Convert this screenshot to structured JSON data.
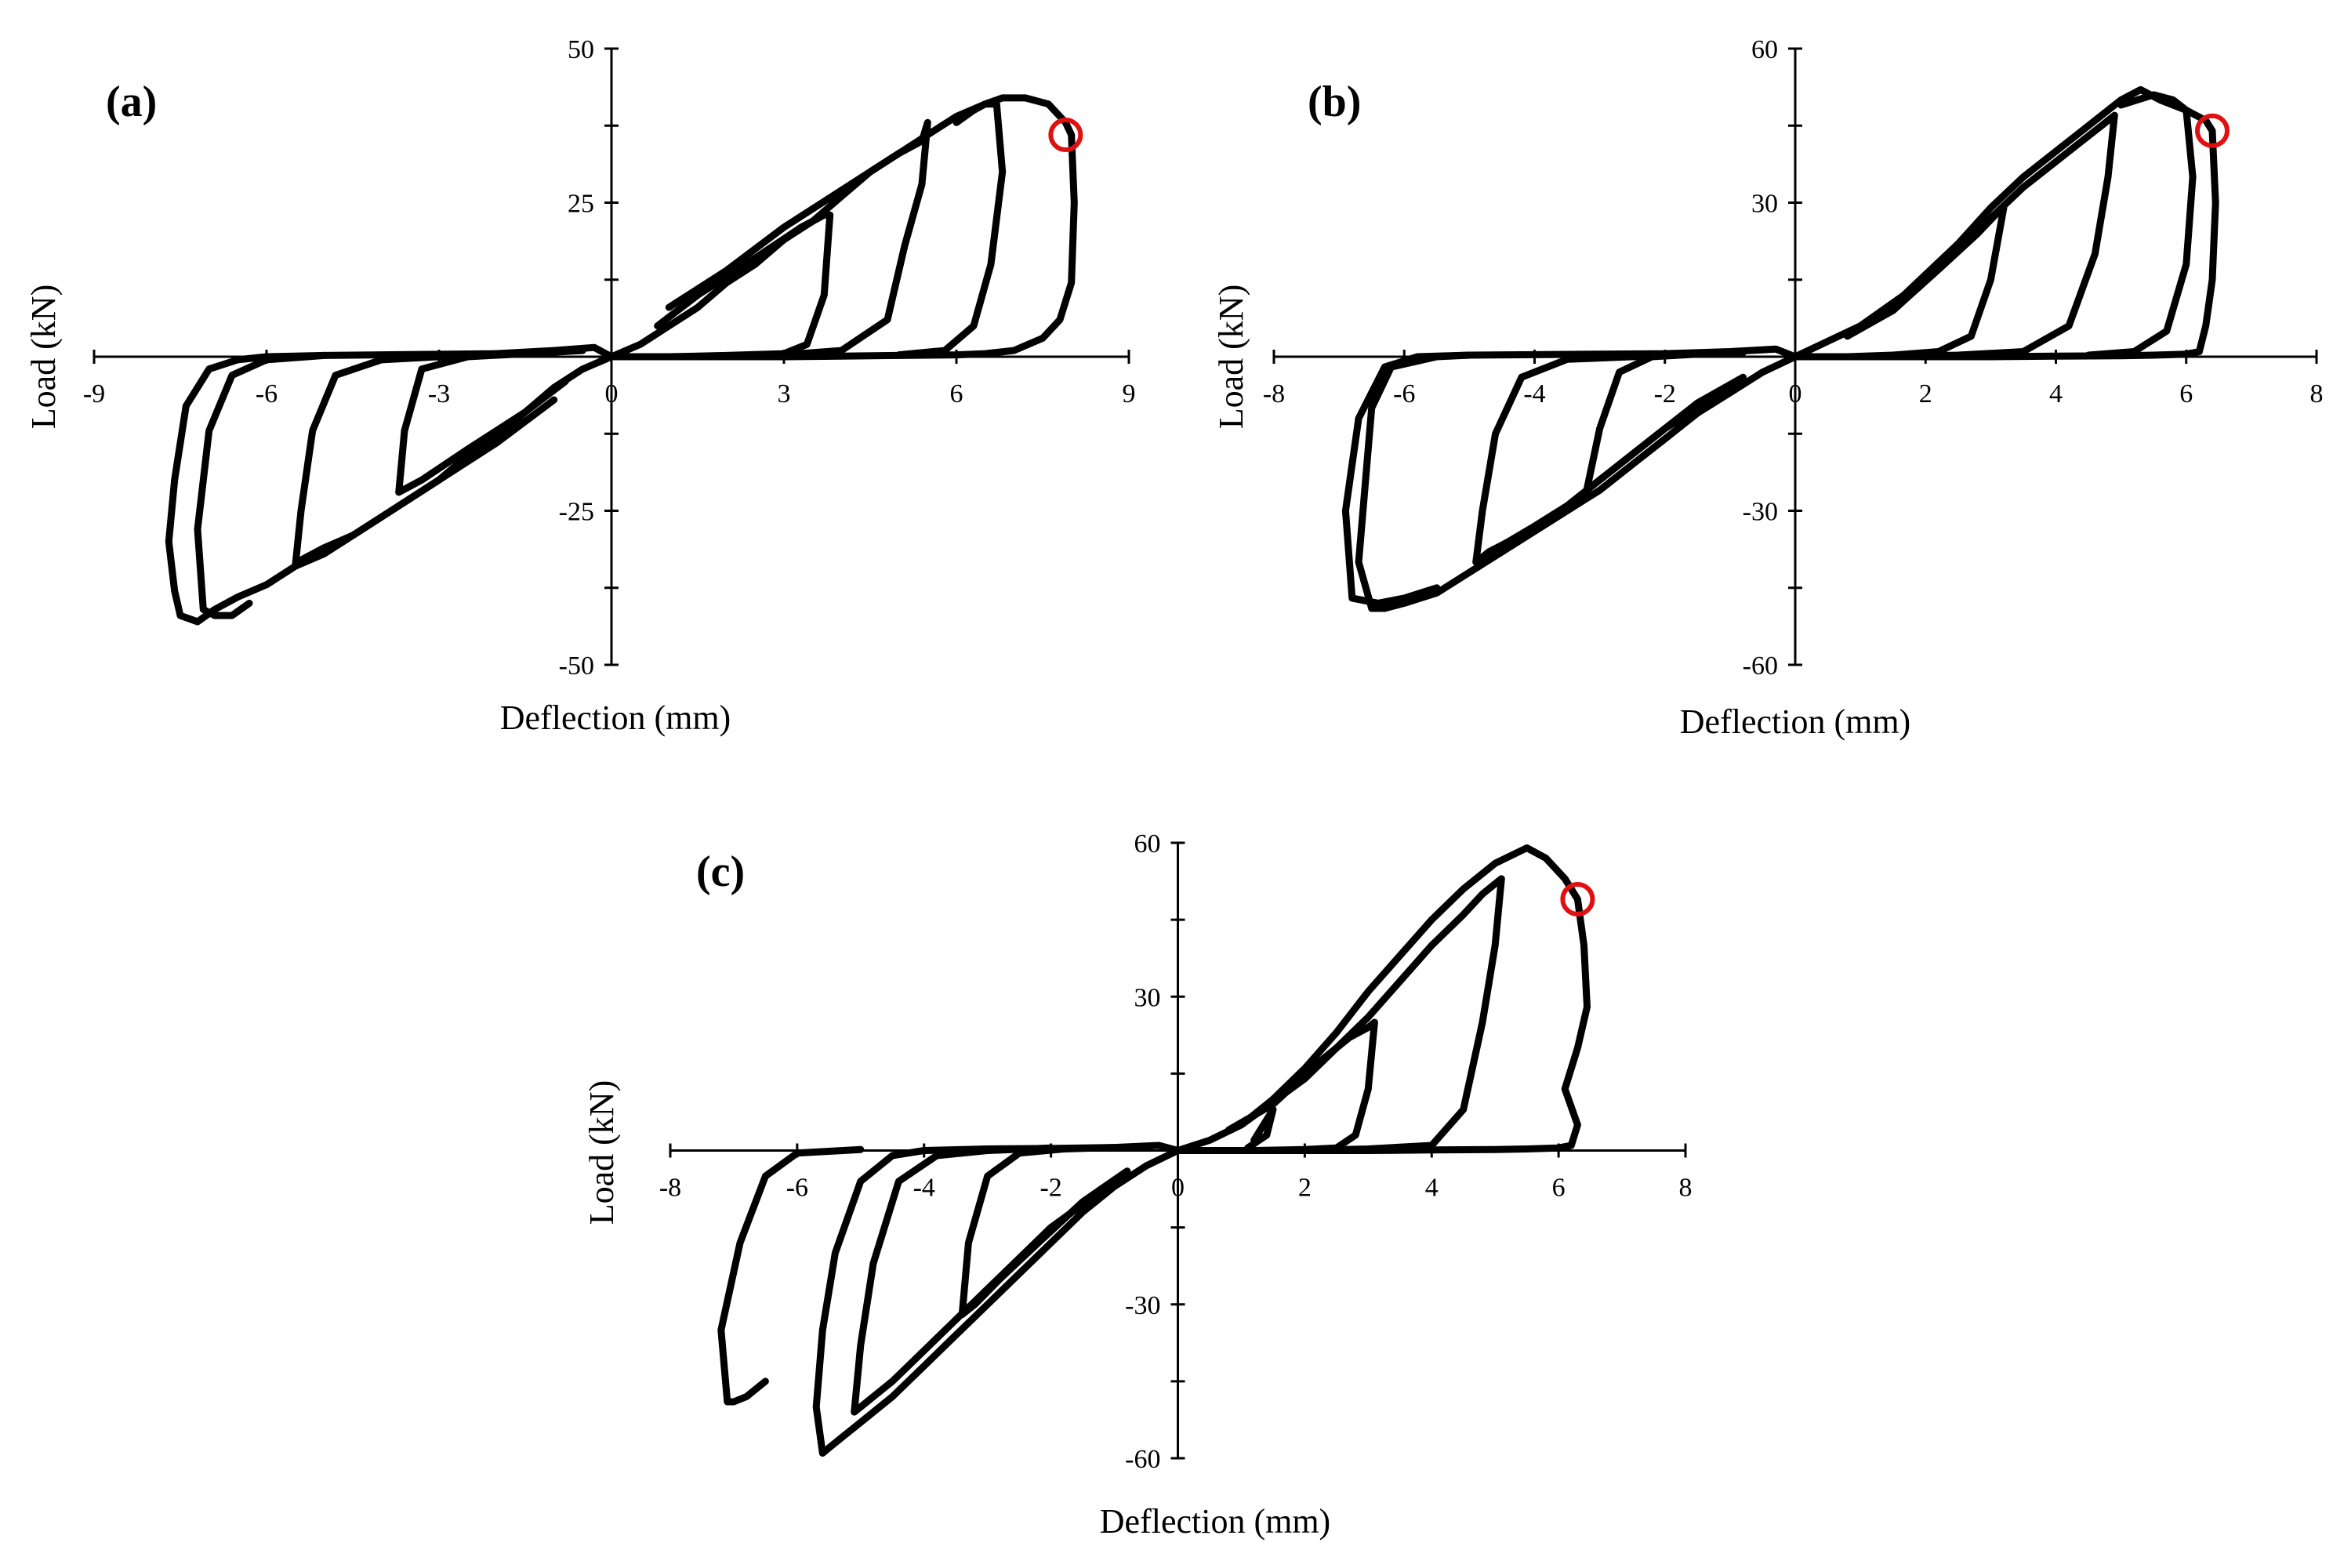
{
  "colors": {
    "curve": "#000000",
    "failure_marker": "#e01010",
    "background": "#ffffff"
  },
  "chart_data": [
    {
      "type": "line",
      "panel_label": "(a)",
      "xlabel": "Deflection (mm)",
      "ylabel": "Load (kN)",
      "xlim": [
        -9,
        9
      ],
      "ylim": [
        -50,
        50
      ],
      "xticks": [
        -9,
        -6,
        -3,
        0,
        3,
        6,
        9
      ],
      "yticks": [
        50,
        25,
        -25,
        -50
      ],
      "grid": false,
      "legend": "none",
      "peak_positive": [
        7.0,
        42
      ],
      "peak_negative": [
        -7.2,
        -43
      ],
      "marker": [
        7.9,
        36
      ],
      "series": [
        {
          "x": [
            0,
            0.5,
            1,
            1.5,
            2,
            2.5,
            3,
            3.5,
            4,
            4.5,
            5,
            5.5,
            6,
            6.5,
            6.8,
            7.2,
            7.6,
            7.9,
            8.0,
            8.05,
            8.0,
            7.8,
            7.5,
            7.0,
            6.5,
            6.0,
            5.0,
            4.0,
            3.0,
            2.0,
            1.2,
            0.5,
            0,
            -0.5,
            -1,
            -1.5,
            -2,
            -2.5,
            -3,
            -3.5,
            -4,
            -4.5,
            -5,
            -5.5,
            -6,
            -6.5,
            -6.9,
            -7.2,
            -7.5,
            -7.6,
            -7.7,
            -7.6,
            -7.4,
            -7.0,
            -6.5,
            -6.0,
            -5.0,
            -4.0,
            -3.0,
            -2.0,
            -1.0,
            -0.3,
            0
          ],
          "y": [
            0,
            2,
            5,
            8,
            12,
            15,
            19,
            22,
            26,
            30,
            33,
            36,
            39,
            41,
            42,
            42,
            41,
            38,
            36,
            25,
            12,
            6,
            3,
            1,
            0.5,
            0.3,
            0.2,
            0.1,
            0,
            0,
            0,
            0,
            0,
            -2,
            -5,
            -9,
            -13,
            -16,
            -20,
            -23,
            -26,
            -29,
            -32,
            -34,
            -37,
            -39,
            -41,
            -43,
            -42,
            -38,
            -30,
            -20,
            -8,
            -2,
            -0.5,
            0,
            0.2,
            0.3,
            0.4,
            0.5,
            1,
            1.5,
            0
          ]
        },
        {
          "x": [
            1.0,
            2.0,
            3.0,
            4.0,
            4.5,
            5.0,
            5.2,
            5.4,
            5.5,
            5.4,
            5.1,
            4.8,
            4.0,
            3.0,
            2.0,
            1.5
          ],
          "y": [
            8,
            14,
            21,
            27,
            30,
            33,
            34,
            35,
            38,
            28,
            18,
            6,
            1,
            0.3,
            0,
            0
          ]
        },
        {
          "x": [
            -1.0,
            -2.0,
            -3.0,
            -4.0,
            -4.5,
            -5.0,
            -5.2,
            -5.4,
            -5.5,
            -5.4,
            -5.2,
            -4.8,
            -4.0,
            -3.0,
            -2.0,
            -1.0
          ],
          "y": [
            -7,
            -14,
            -20,
            -26,
            -29,
            -31,
            -32,
            -33,
            -34,
            -25,
            -12,
            -3,
            -0.5,
            0,
            0.5,
            0.5
          ]
        },
        {
          "x": [
            0.8,
            1.5,
            2.5,
            3.3,
            3.5,
            3.7,
            3.8,
            3.7,
            3.4,
            3.0,
            2.0,
            1.0
          ],
          "y": [
            5,
            10,
            16,
            21,
            22,
            23,
            23,
            10,
            2,
            0.5,
            0.2,
            0
          ]
        },
        {
          "x": [
            -0.8,
            -1.5,
            -2.5,
            -3.3,
            -3.5,
            -3.7,
            -3.6,
            -3.3,
            -2.5,
            -1.5,
            -0.5
          ],
          "y": [
            -4,
            -9,
            -15,
            -20,
            -21,
            -22,
            -12,
            -2,
            0,
            0.5,
            1
          ]
        },
        {
          "x": [
            6.0,
            6.3,
            6.5,
            6.7,
            6.8,
            6.6,
            6.3,
            5.8,
            5.0
          ],
          "y": [
            38,
            40,
            41,
            41,
            30,
            15,
            5,
            1,
            0.3
          ]
        },
        {
          "x": [
            -6.3,
            -6.6,
            -6.9,
            -7.1,
            -7.2,
            -7.0,
            -6.6,
            -6.0,
            -5.0
          ],
          "y": [
            -40,
            -42,
            -42,
            -41,
            -28,
            -12,
            -3,
            -0.5,
            0.2
          ]
        }
      ]
    },
    {
      "type": "line",
      "panel_label": "(b)",
      "xlabel": "Deflection (mm)",
      "ylabel": "Load (kN)",
      "xlim": [
        -8,
        8
      ],
      "ylim": [
        -60,
        60
      ],
      "xticks": [
        -8,
        -6,
        -4,
        -2,
        0,
        2,
        4,
        6,
        8
      ],
      "yticks": [
        60,
        30,
        -30,
        -60
      ],
      "grid": false,
      "legend": "none",
      "peak_positive": [
        5.3,
        52
      ],
      "peak_negative": [
        -6.5,
        -49
      ],
      "marker": [
        6.4,
        44
      ],
      "series": [
        {
          "x": [
            0,
            0.5,
            1,
            1.5,
            2,
            2.5,
            3,
            3.5,
            4,
            4.5,
            5,
            5.3,
            5.6,
            6.0,
            6.3,
            6.4,
            6.45,
            6.4,
            6.3,
            6.2,
            6.0,
            5.5,
            5.0,
            4.0,
            3.0,
            2.0,
            1.0,
            0,
            -0.5,
            -1,
            -1.5,
            -2,
            -2.5,
            -3,
            -3.5,
            -4,
            -4.5,
            -5,
            -5.5,
            -6,
            -6.3,
            -6.5,
            -6.7,
            -6.6,
            -6.5,
            -6.2,
            -5.5,
            -5.0,
            -4.0,
            -3.0,
            -2.0,
            -1.0,
            -0.3,
            0
          ],
          "y": [
            0,
            3,
            6,
            10,
            16,
            22,
            29,
            35,
            40,
            45,
            50,
            52,
            50,
            48,
            46,
            44,
            30,
            15,
            6,
            1,
            0.5,
            0.3,
            0.2,
            0.1,
            0,
            0,
            0,
            0,
            -3,
            -7,
            -11,
            -16,
            -21,
            -26,
            -30,
            -34,
            -38,
            -42,
            -46,
            -48,
            -49,
            -49,
            -40,
            -25,
            -10,
            -2,
            0,
            0.3,
            0.4,
            0.5,
            0.6,
            1,
            1.5,
            0
          ]
        },
        {
          "x": [
            1.0,
            2.0,
            3.0,
            3.5,
            4.0,
            4.4,
            4.7,
            4.8,
            4.9,
            4.8,
            4.6,
            4.2,
            3.5,
            2.5,
            1.5
          ],
          "y": [
            6,
            15,
            27,
            33,
            38,
            42,
            45,
            46,
            47,
            35,
            20,
            6,
            1,
            0.3,
            0
          ]
        },
        {
          "x": [
            -1.0,
            -2.0,
            -3.0,
            -3.5,
            -4.0,
            -4.4,
            -4.7,
            -4.8,
            -4.9,
            -4.8,
            -4.6,
            -4.2,
            -3.5,
            -2.5,
            -1.5
          ],
          "y": [
            -6,
            -14,
            -24,
            -29,
            -33,
            -36,
            -38,
            -39,
            -40,
            -30,
            -15,
            -4,
            -0.5,
            0,
            0.5
          ]
        },
        {
          "x": [
            0.8,
            1.5,
            2.2,
            2.8,
            3.1,
            3.2,
            3.0,
            2.7,
            2.2,
            1.5,
            0.8
          ],
          "y": [
            4,
            9,
            17,
            24,
            28,
            29,
            15,
            4,
            1,
            0.3,
            0
          ]
        },
        {
          "x": [
            -0.8,
            -1.5,
            -2.2,
            -2.8,
            -3.1,
            -3.2,
            -3.0,
            -2.7,
            -2.2,
            -1.5,
            -0.8
          ],
          "y": [
            -4,
            -9,
            -16,
            -22,
            -25,
            -26,
            -14,
            -3,
            0,
            0.5,
            0.8
          ]
        },
        {
          "x": [
            5.0,
            5.5,
            5.8,
            6.0,
            6.1,
            6.0,
            5.7,
            5.2,
            4.5
          ],
          "y": [
            49,
            51,
            50,
            48,
            35,
            18,
            5,
            1,
            0.3
          ]
        },
        {
          "x": [
            -5.5,
            -6.0,
            -6.4,
            -6.8,
            -6.9,
            -6.7,
            -6.3,
            -5.8,
            -5.0
          ],
          "y": [
            -45,
            -47,
            -48,
            -47,
            -30,
            -12,
            -2,
            0,
            0.3
          ]
        }
      ]
    },
    {
      "type": "line",
      "panel_label": "(c)",
      "xlabel": "Deflection (mm)",
      "ylabel": "Load (kN)",
      "xlim": [
        -8,
        8
      ],
      "ylim": [
        -60,
        60
      ],
      "xticks": [
        -8,
        -6,
        -4,
        -2,
        0,
        2,
        4,
        6,
        8
      ],
      "yticks": [
        60,
        30,
        -30,
        -60
      ],
      "grid": false,
      "legend": "none",
      "peak_positive": [
        5.5,
        59
      ],
      "peak_negative": [
        -5.5,
        -59
      ],
      "marker": [
        6.3,
        49
      ],
      "series": [
        {
          "x": [
            0,
            0.5,
            1,
            1.5,
            2,
            2.5,
            3,
            3.5,
            4,
            4.5,
            5,
            5.5,
            5.8,
            6.1,
            6.3,
            6.4,
            6.45,
            6.3,
            6.1,
            6.3,
            6.2,
            6.0,
            5.5,
            5.0,
            4.0,
            3.0,
            2.0,
            1.0,
            0,
            -0.5,
            -1,
            -1.5,
            -2,
            -2.5,
            -3,
            -3.5,
            -4,
            -4.5,
            -5,
            -5.3,
            -5.5,
            -5.6,
            -5.7,
            -5.6,
            -5.4,
            -5.0,
            -4.5,
            -4.0,
            -3.0,
            -2.0,
            -1.0,
            -0.3,
            0
          ],
          "y": [
            0,
            2,
            5,
            10,
            16,
            23,
            31,
            38,
            45,
            51,
            56,
            59,
            57,
            53,
            49,
            40,
            28,
            20,
            12,
            5,
            1,
            0.5,
            0.3,
            0.2,
            0.1,
            0,
            0,
            0,
            0,
            -3,
            -7,
            -12,
            -18,
            -24,
            -30,
            -36,
            -42,
            -48,
            -53,
            -56,
            -58,
            -59,
            -50,
            -35,
            -20,
            -6,
            -1,
            0,
            0.3,
            0.4,
            0.6,
            1,
            0
          ]
        },
        {
          "x": [
            1.0,
            2.0,
            3.0,
            3.5,
            4.0,
            4.5,
            4.8,
            5.0,
            5.1,
            5.0,
            4.8,
            4.5,
            4.0,
            3.0,
            2.0
          ],
          "y": [
            5,
            14,
            26,
            33,
            40,
            46,
            50,
            52,
            53,
            40,
            25,
            8,
            1,
            0.3,
            0
          ]
        },
        {
          "x": [
            -1.0,
            -2.0,
            -3.0,
            -3.5,
            -4.0,
            -4.5,
            -4.8,
            -5.0,
            -5.1,
            -5.0,
            -4.8,
            -4.4,
            -3.8,
            -3.0,
            -2.0
          ],
          "y": [
            -6,
            -15,
            -27,
            -33,
            -39,
            -45,
            -48,
            -50,
            -51,
            -38,
            -22,
            -6,
            -1,
            0,
            0.5
          ]
        },
        {
          "x": [
            0.8,
            1.5,
            2.2,
            2.7,
            3.0,
            3.1,
            3.0,
            2.8,
            2.5,
            2.0,
            1.2
          ],
          "y": [
            4,
            9,
            17,
            22,
            24,
            25,
            12,
            3,
            0.5,
            0.2,
            0
          ]
        },
        {
          "x": [
            -0.8,
            -1.5,
            -2.2,
            -2.8,
            -3.2,
            -3.4,
            -3.3,
            -3.0,
            -2.5,
            -1.8,
            -1.0
          ],
          "y": [
            -4,
            -10,
            -18,
            -25,
            -30,
            -32,
            -18,
            -5,
            -0.5,
            0.3,
            0.6
          ]
        },
        {
          "x": [
            -6.5,
            -6.8,
            -7.0,
            -7.1,
            -7.2,
            -6.9,
            -6.5,
            -6.0,
            -5.0
          ],
          "y": [
            -45,
            -48,
            -49,
            -49,
            -35,
            -18,
            -5,
            -0.5,
            0.2
          ]
        },
        {
          "x": [
            1.2,
            1.4,
            1.5,
            1.4,
            1.1
          ],
          "y": [
            2,
            6,
            8,
            3,
            0.5
          ]
        }
      ]
    }
  ]
}
